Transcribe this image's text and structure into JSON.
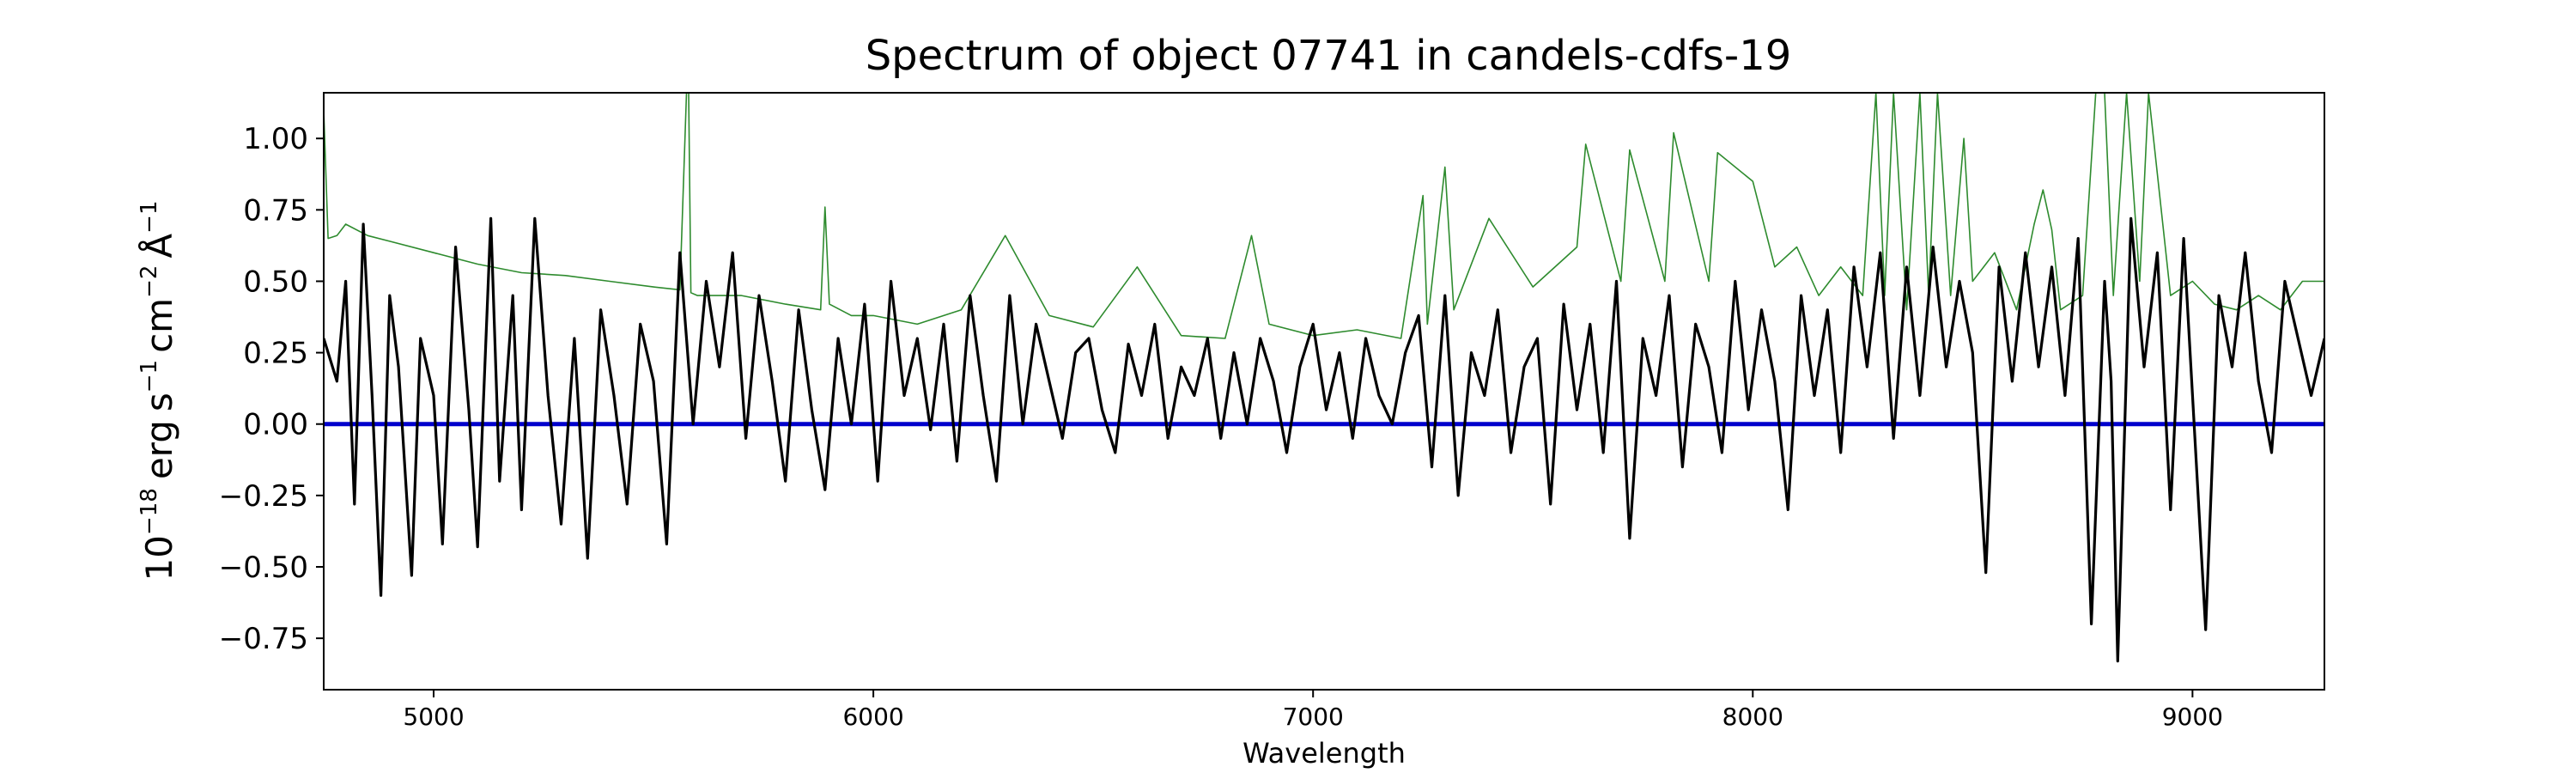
{
  "chart_data": {
    "type": "line",
    "title": "Spectrum of object 07741 in candels-cdfs-19",
    "xlabel": "Wavelength",
    "ylabel": {
      "base": "10",
      "exp": "−18",
      "erg": "erg",
      "s": "s",
      "s_exp": "−1",
      "cm": "cm",
      "cm_exp": "−2",
      "ang": "Å",
      "ang_exp": "−1"
    },
    "xlim": [
      4750,
      9300
    ],
    "ylim": [
      -0.93,
      1.16
    ],
    "xticks": [
      5000,
      6000,
      7000,
      8000,
      9000
    ],
    "xtick_labels": [
      "5000",
      "6000",
      "7000",
      "8000",
      "9000"
    ],
    "yticks": [
      -0.75,
      -0.5,
      -0.25,
      0.0,
      0.25,
      0.5,
      0.75,
      1.0
    ],
    "ytick_labels": [
      "−0.75",
      "−0.50",
      "−0.25",
      "0.00",
      "0.25",
      "0.50",
      "0.75",
      "1.00"
    ],
    "grid": false,
    "colors": {
      "flux": "#000000",
      "error": "#2e8b2e",
      "zero": "#0000cc"
    },
    "series": [
      {
        "role": "zero",
        "x": [
          4750,
          9300
        ],
        "y": [
          0,
          0
        ]
      },
      {
        "role": "error",
        "x": [
          4750,
          4760,
          4780,
          4800,
          4850,
          4900,
          5000,
          5100,
          5200,
          5300,
          5400,
          5500,
          5560,
          5575,
          5580,
          5585,
          5600,
          5700,
          5800,
          5880,
          5890,
          5900,
          5950,
          6000,
          6100,
          6200,
          6300,
          6400,
          6500,
          6600,
          6700,
          6800,
          6860,
          6900,
          7000,
          7100,
          7200,
          7250,
          7260,
          7300,
          7320,
          7400,
          7500,
          7600,
          7620,
          7700,
          7720,
          7800,
          7820,
          7900,
          7920,
          8000,
          8050,
          8100,
          8150,
          8200,
          8250,
          8280,
          8300,
          8320,
          8350,
          8380,
          8400,
          8420,
          8450,
          8480,
          8500,
          8550,
          8600,
          8640,
          8660,
          8680,
          8700,
          8750,
          8780,
          8800,
          8820,
          8850,
          8880,
          8900,
          8950,
          9000,
          9050,
          9100,
          9150,
          9200,
          9250,
          9300
        ],
        "y": [
          1.1,
          0.65,
          0.66,
          0.7,
          0.66,
          0.64,
          0.6,
          0.56,
          0.53,
          0.52,
          0.5,
          0.48,
          0.47,
          1.16,
          1.16,
          0.46,
          0.45,
          0.45,
          0.42,
          0.4,
          0.76,
          0.42,
          0.38,
          0.38,
          0.35,
          0.4,
          0.66,
          0.38,
          0.34,
          0.55,
          0.31,
          0.3,
          0.66,
          0.35,
          0.31,
          0.33,
          0.3,
          0.8,
          0.35,
          0.9,
          0.4,
          0.72,
          0.48,
          0.62,
          0.98,
          0.5,
          0.96,
          0.5,
          1.02,
          0.5,
          0.95,
          0.85,
          0.55,
          0.62,
          0.45,
          0.55,
          0.45,
          1.16,
          0.45,
          1.16,
          0.4,
          1.16,
          0.45,
          1.16,
          0.45,
          1.0,
          0.5,
          0.6,
          0.4,
          0.7,
          0.82,
          0.68,
          0.4,
          0.45,
          1.16,
          1.16,
          0.45,
          1.16,
          0.5,
          1.16,
          0.45,
          0.5,
          0.42,
          0.4,
          0.45,
          0.4,
          0.5,
          0.5
        ]
      },
      {
        "role": "flux",
        "x": [
          4750,
          4780,
          4800,
          4820,
          4840,
          4860,
          4880,
          4900,
          4920,
          4950,
          4970,
          5000,
          5020,
          5050,
          5080,
          5100,
          5130,
          5150,
          5180,
          5200,
          5230,
          5260,
          5290,
          5320,
          5350,
          5380,
          5410,
          5440,
          5470,
          5500,
          5530,
          5560,
          5590,
          5620,
          5650,
          5680,
          5710,
          5740,
          5770,
          5800,
          5830,
          5860,
          5890,
          5920,
          5950,
          5980,
          6010,
          6040,
          6070,
          6100,
          6130,
          6160,
          6190,
          6220,
          6250,
          6280,
          6310,
          6340,
          6370,
          6400,
          6430,
          6460,
          6490,
          6520,
          6550,
          6580,
          6610,
          6640,
          6670,
          6700,
          6730,
          6760,
          6790,
          6820,
          6850,
          6880,
          6910,
          6940,
          6970,
          7000,
          7030,
          7060,
          7090,
          7120,
          7150,
          7180,
          7210,
          7240,
          7270,
          7300,
          7330,
          7360,
          7390,
          7420,
          7450,
          7480,
          7510,
          7540,
          7570,
          7600,
          7630,
          7660,
          7690,
          7720,
          7750,
          7780,
          7810,
          7840,
          7870,
          7900,
          7930,
          7960,
          7990,
          8020,
          8050,
          8080,
          8110,
          8140,
          8170,
          8200,
          8230,
          8260,
          8290,
          8320,
          8350,
          8380,
          8410,
          8440,
          8470,
          8500,
          8530,
          8560,
          8590,
          8620,
          8650,
          8680,
          8710,
          8740,
          8770,
          8800,
          8815,
          8830,
          8860,
          8890,
          8920,
          8950,
          8980,
          9000,
          9030,
          9060,
          9090,
          9120,
          9150,
          9180,
          9210,
          9240,
          9270,
          9300
        ],
        "y": [
          0.3,
          0.15,
          0.5,
          -0.28,
          0.7,
          0.1,
          -0.6,
          0.45,
          0.2,
          -0.53,
          0.3,
          0.1,
          -0.42,
          0.62,
          0.05,
          -0.43,
          0.72,
          -0.2,
          0.45,
          -0.3,
          0.72,
          0.1,
          -0.35,
          0.3,
          -0.47,
          0.4,
          0.1,
          -0.28,
          0.35,
          0.15,
          -0.42,
          0.6,
          0.0,
          0.5,
          0.2,
          0.6,
          -0.05,
          0.45,
          0.15,
          -0.2,
          0.4,
          0.05,
          -0.23,
          0.3,
          0.0,
          0.42,
          -0.2,
          0.5,
          0.1,
          0.3,
          -0.02,
          0.35,
          -0.13,
          0.45,
          0.1,
          -0.2,
          0.45,
          0.0,
          0.35,
          0.15,
          -0.05,
          0.25,
          0.3,
          0.05,
          -0.1,
          0.28,
          0.1,
          0.35,
          -0.05,
          0.2,
          0.1,
          0.3,
          -0.05,
          0.25,
          0.0,
          0.3,
          0.15,
          -0.1,
          0.2,
          0.35,
          0.05,
          0.25,
          -0.05,
          0.3,
          0.1,
          0.0,
          0.25,
          0.38,
          -0.15,
          0.45,
          -0.25,
          0.25,
          0.1,
          0.4,
          -0.1,
          0.2,
          0.3,
          -0.28,
          0.42,
          0.05,
          0.35,
          -0.1,
          0.5,
          -0.4,
          0.3,
          0.1,
          0.45,
          -0.15,
          0.35,
          0.2,
          -0.1,
          0.5,
          0.05,
          0.4,
          0.15,
          -0.3,
          0.45,
          0.1,
          0.4,
          -0.1,
          0.55,
          0.2,
          0.6,
          -0.05,
          0.55,
          0.1,
          0.62,
          0.2,
          0.5,
          0.25,
          -0.52,
          0.55,
          0.15,
          0.6,
          0.2,
          0.55,
          0.1,
          0.65,
          -0.7,
          0.5,
          0.15,
          -0.83,
          0.72,
          0.2,
          0.6,
          -0.3,
          0.65,
          0.1,
          -0.72,
          0.45,
          0.2,
          0.6,
          0.15,
          -0.1,
          0.5,
          0.3,
          0.1,
          0.3
        ]
      }
    ]
  }
}
